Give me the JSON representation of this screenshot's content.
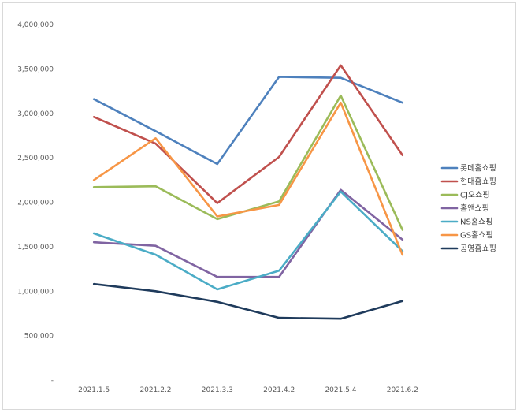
{
  "chart_data": {
    "type": "line",
    "title": "",
    "xlabel": "",
    "ylabel": "",
    "categories": [
      "2021.1.5",
      "2021.2.2",
      "2021.3.3",
      "2021.4.2",
      "2021.5.4",
      "2021.6.2"
    ],
    "ylim": [
      0,
      4000000
    ],
    "yticks": [
      0,
      500000,
      1000000,
      1500000,
      2000000,
      2500000,
      3000000,
      3500000,
      4000000
    ],
    "ytick_labels": [
      "-",
      "500,000",
      "1,000,000",
      "1,500,000",
      "2,000,000",
      "2,500,000",
      "3,000,000",
      "3,500,000",
      "4,000,000"
    ],
    "grid": false,
    "legend_position": "right",
    "series": [
      {
        "name": "롯데홈쇼핑",
        "color": "#4e81bd",
        "values": [
          3160000,
          2800000,
          2430000,
          3410000,
          3400000,
          3120000
        ]
      },
      {
        "name": "현대홈쇼핑",
        "color": "#c0504d",
        "values": [
          2960000,
          2660000,
          1990000,
          2510000,
          3540000,
          2530000
        ]
      },
      {
        "name": "CJ오쇼핑",
        "color": "#9bbb59",
        "values": [
          2170000,
          2180000,
          1810000,
          2010000,
          3200000,
          1690000
        ]
      },
      {
        "name": "홈앤쇼핑",
        "color": "#8064a2",
        "values": [
          1550000,
          1510000,
          1160000,
          1160000,
          2140000,
          1580000
        ]
      },
      {
        "name": "NS홈쇼핑",
        "color": "#4bacc6",
        "values": [
          1650000,
          1410000,
          1020000,
          1230000,
          2120000,
          1450000
        ]
      },
      {
        "name": "GS홈쇼핑",
        "color": "#f79646",
        "values": [
          2250000,
          2720000,
          1840000,
          1970000,
          3120000,
          1410000
        ]
      },
      {
        "name": "공영홈쇼핑",
        "color": "#1f3b5c",
        "values": [
          1080000,
          1000000,
          880000,
          700000,
          690000,
          890000
        ]
      }
    ]
  }
}
